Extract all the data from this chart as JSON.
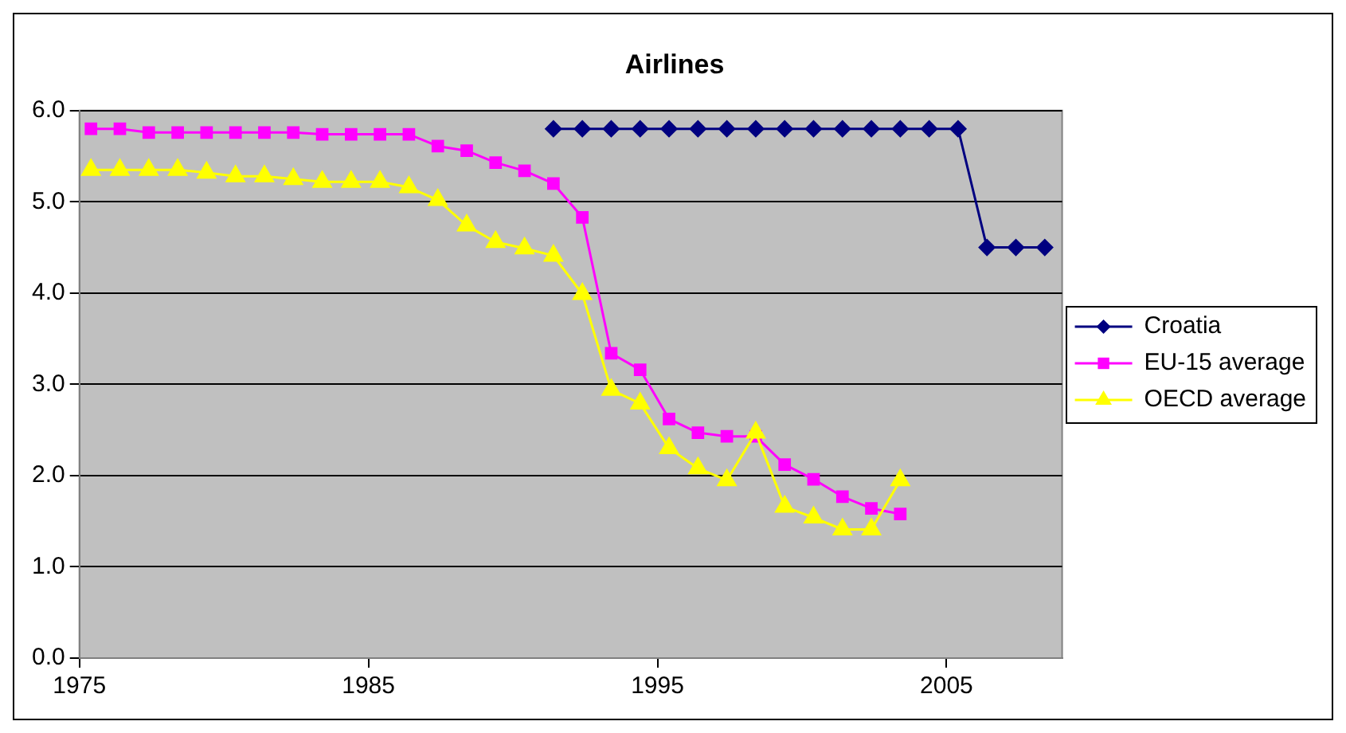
{
  "chart_data": {
    "type": "line",
    "title": "Airlines",
    "xlim": [
      1975,
      2009
    ],
    "xticks": [
      1975,
      1985,
      1995,
      2005
    ],
    "ylim": [
      0,
      6
    ],
    "yticks": [
      {
        "value": 0,
        "label": "0.0"
      },
      {
        "value": 1,
        "label": "1.0"
      },
      {
        "value": 2,
        "label": "2.0"
      },
      {
        "value": 3,
        "label": "3.0"
      },
      {
        "value": 4,
        "label": "4.0"
      },
      {
        "value": 5,
        "label": "5.0"
      },
      {
        "value": 6,
        "label": "6.0"
      }
    ],
    "grid": "y",
    "legend": "right",
    "series": [
      {
        "name": "Croatia",
        "color": "#000080",
        "marker": "diamond",
        "x": [
          1991.4,
          1992.4,
          1993.4,
          1994.4,
          1995.4,
          1996.4,
          1997.4,
          1998.4,
          1999.4,
          2000.4,
          2001.4,
          2002.4,
          2003.4,
          2004.4,
          2005.4,
          2006.4,
          2007.4,
          2008.4
        ],
        "values": [
          5.8,
          5.8,
          5.8,
          5.8,
          5.8,
          5.8,
          5.8,
          5.8,
          5.8,
          5.8,
          5.8,
          5.8,
          5.8,
          5.8,
          5.8,
          4.5,
          4.5,
          4.5
        ]
      },
      {
        "name": "EU-15 average",
        "color": "#ff00ff",
        "marker": "square",
        "x": [
          1975.4,
          1976.4,
          1977.4,
          1978.4,
          1979.4,
          1980.4,
          1981.4,
          1982.4,
          1983.4,
          1984.4,
          1985.4,
          1986.4,
          1987.4,
          1988.4,
          1989.4,
          1990.4,
          1991.4,
          1992.4,
          1993.4,
          1994.4,
          1995.4,
          1996.4,
          1997.4,
          1998.4,
          1999.4,
          2000.4,
          2001.4,
          2002.4,
          2003.4
        ],
        "values": [
          5.8,
          5.8,
          5.76,
          5.76,
          5.76,
          5.76,
          5.76,
          5.76,
          5.74,
          5.74,
          5.74,
          5.74,
          5.61,
          5.56,
          5.43,
          5.34,
          5.2,
          4.83,
          3.34,
          3.16,
          2.62,
          2.47,
          2.43,
          2.43,
          2.12,
          1.96,
          1.77,
          1.64,
          1.58
        ]
      },
      {
        "name": "OECD average",
        "color": "#ffff00",
        "marker": "triangle",
        "x": [
          1975.4,
          1976.4,
          1977.4,
          1978.4,
          1979.4,
          1980.4,
          1981.4,
          1982.4,
          1983.4,
          1984.4,
          1985.4,
          1986.4,
          1987.4,
          1988.4,
          1989.4,
          1990.4,
          1991.4,
          1992.4,
          1993.4,
          1994.4,
          1995.4,
          1996.4,
          1997.4,
          1998.4,
          1999.4,
          2000.4,
          2001.4,
          2002.4,
          2003.4
        ],
        "values": [
          5.35,
          5.35,
          5.35,
          5.35,
          5.32,
          5.28,
          5.28,
          5.25,
          5.22,
          5.22,
          5.22,
          5.16,
          5.02,
          4.74,
          4.56,
          4.49,
          4.41,
          3.99,
          2.94,
          2.79,
          2.3,
          2.08,
          1.95,
          2.47,
          1.66,
          1.54,
          1.41,
          1.41,
          1.95
        ]
      }
    ]
  }
}
